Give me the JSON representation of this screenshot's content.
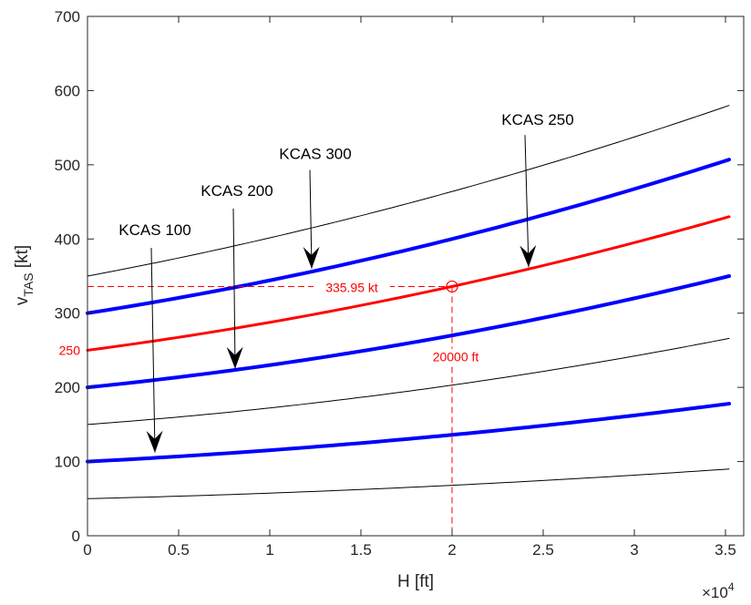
{
  "chart_data": {
    "type": "line",
    "xlabel": "H [ft]",
    "ylabel_main": "v",
    "ylabel_sub": "TAS",
    "ylabel_unit": " [kt]",
    "x_exponent_label": "×10",
    "x_exponent_power": "4",
    "xlim": [
      0,
      36000
    ],
    "ylim": [
      0,
      700
    ],
    "xtick_values": [
      0,
      5000,
      10000,
      15000,
      20000,
      25000,
      30000,
      35000
    ],
    "xtick_labels": [
      "0",
      "0.5",
      "1",
      "1.5",
      "2",
      "2.5",
      "3",
      "3.5"
    ],
    "ytick_values": [
      0,
      100,
      200,
      300,
      400,
      500,
      600,
      700
    ],
    "ytick_labels": [
      "0",
      "100",
      "200",
      "300",
      "400",
      "500",
      "600",
      "700"
    ],
    "colors": {
      "black": "#000000",
      "blue": "#0000ff",
      "red": "#ff0000",
      "axis": "#262626"
    },
    "curve_x_max": 35200,
    "series": [
      {
        "kcas": 50,
        "color": "#000000",
        "width": 1,
        "values_at_0_20000_35200": [
          50,
          68,
          90
        ]
      },
      {
        "kcas": 100,
        "color": "#0000ff",
        "width": 4,
        "values_at_0_20000_35200": [
          100,
          136,
          178
        ]
      },
      {
        "kcas": 150,
        "color": "#000000",
        "width": 1,
        "values_at_0_20000_35200": [
          150,
          203,
          266
        ]
      },
      {
        "kcas": 200,
        "color": "#0000ff",
        "width": 4,
        "values_at_0_20000_35200": [
          200,
          270,
          350
        ]
      },
      {
        "kcas": 250,
        "color": "#ff0000",
        "width": 3,
        "values_at_0_20000_35200": [
          250,
          336,
          430
        ]
      },
      {
        "kcas": 300,
        "color": "#0000ff",
        "width": 4,
        "values_at_0_20000_35200": [
          300,
          400,
          507
        ]
      },
      {
        "kcas": 350,
        "color": "#000000",
        "width": 1,
        "values_at_0_20000_35200": [
          350,
          464,
          580
        ]
      }
    ],
    "annotations": [
      {
        "text": "KCAS 100",
        "text_x": 3700,
        "text_y": 405,
        "arrow_from": [
          3500,
          388
        ],
        "arrow_to": [
          3700,
          112
        ]
      },
      {
        "text": "KCAS 200",
        "text_x": 8200,
        "text_y": 458,
        "arrow_from": [
          8000,
          441
        ],
        "arrow_to": [
          8100,
          225
        ]
      },
      {
        "text": "KCAS 300",
        "text_x": 12500,
        "text_y": 508,
        "arrow_from": [
          12200,
          493
        ],
        "arrow_to": [
          12300,
          360
        ]
      },
      {
        "text": "KCAS 250",
        "text_x": 24700,
        "text_y": 554,
        "arrow_from": [
          24000,
          540
        ],
        "arrow_to": [
          24200,
          362
        ]
      }
    ],
    "highlight": {
      "altitude": 20000,
      "speed": 335.95,
      "speed_label": "335.95 kt",
      "altitude_label": "20000 ft",
      "ytick_label": "250",
      "ytick_value": 250
    }
  }
}
